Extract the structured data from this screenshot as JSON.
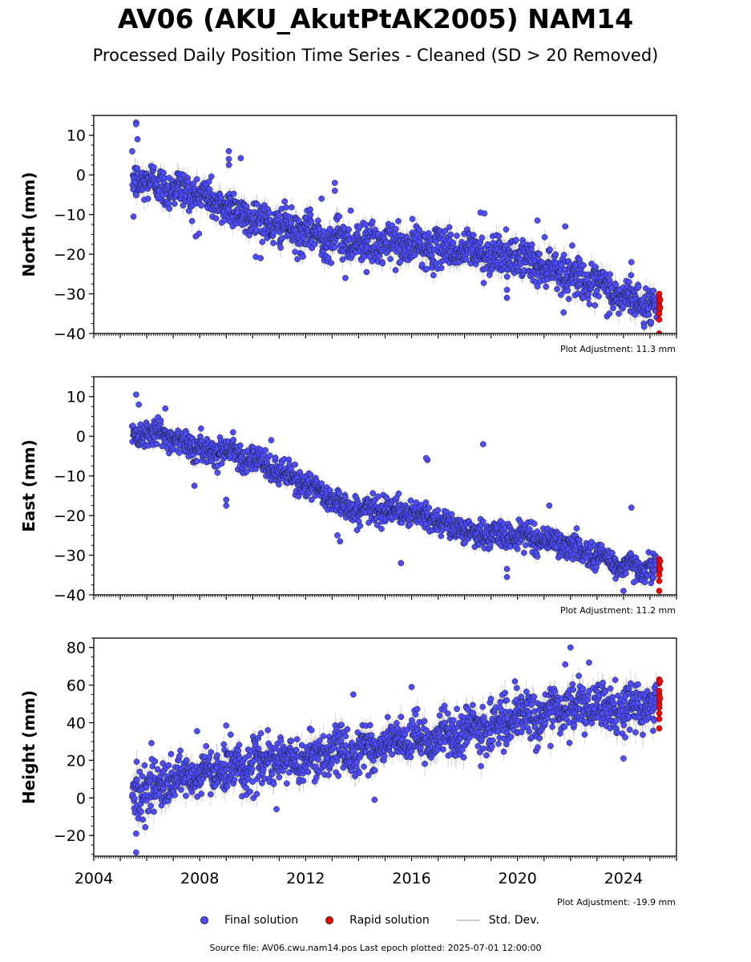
{
  "header": {
    "title": "AV06 (AKU_AkutPtAK2005) NAM14",
    "subtitle": "Processed Daily Position Time Series - Cleaned (SD > 20 Removed)"
  },
  "legend": {
    "final": "Final solution",
    "rapid": "Rapid solution",
    "std": "Std. Dev."
  },
  "footer": {
    "source": "Source file: AV06.cwu.nam14.pos  Last epoch plotted: 2025-07-01 12:00:00"
  },
  "colors": {
    "final": "#4d4dff",
    "rapid": "#ff0000",
    "std": "#bbbbbb",
    "edge": "#1a1a1a"
  },
  "chart_data": [
    {
      "type": "scatter",
      "ylabel": "North (mm)",
      "adjustment": "Plot Adjustment: 11.3 mm",
      "xlim": [
        2004.0,
        2026.0
      ],
      "ylim": [
        -40,
        15
      ],
      "yticks": [
        10,
        0,
        -10,
        -20,
        -30,
        -40
      ],
      "yticklabels": [
        "10",
        "0",
        "−10",
        "−20",
        "−30",
        "−40"
      ],
      "show_xticklabels": false,
      "trend": [
        [
          2005.5,
          -1
        ],
        [
          2008,
          -5
        ],
        [
          2010,
          -11
        ],
        [
          2012,
          -15
        ],
        [
          2014,
          -17
        ],
        [
          2016,
          -18
        ],
        [
          2018,
          -19
        ],
        [
          2020,
          -21
        ],
        [
          2022,
          -25
        ],
        [
          2024,
          -31
        ],
        [
          2025.2,
          -33
        ]
      ],
      "scatter_sd": 2.4,
      "outliers": [
        [
          2005.6,
          13.2
        ],
        [
          2005.6,
          12.8
        ],
        [
          2005.65,
          9
        ],
        [
          2009.1,
          6
        ],
        [
          2009.1,
          4
        ],
        [
          2009.1,
          2.5
        ],
        [
          2009.55,
          4.2
        ],
        [
          2013.1,
          -2
        ],
        [
          2013.1,
          -4
        ],
        [
          2012.6,
          -6
        ],
        [
          2013.7,
          -9
        ],
        [
          2018.6,
          -9.5
        ],
        [
          2018.75,
          -9.7
        ],
        [
          2019.6,
          -31
        ],
        [
          2019.6,
          -29
        ],
        [
          2020.75,
          -11.5
        ],
        [
          2021.8,
          -13
        ],
        [
          2024.3,
          -22
        ],
        [
          2005.5,
          -10.5
        ],
        [
          2007.85,
          -15.5
        ],
        [
          2010.3,
          -21
        ],
        [
          2013.5,
          -26
        ],
        [
          2014.3,
          -24.5
        ]
      ],
      "rapid": [
        [
          2025.35,
          -30
        ],
        [
          2025.35,
          -31
        ],
        [
          2025.35,
          -32
        ],
        [
          2025.35,
          -33
        ],
        [
          2025.35,
          -34
        ],
        [
          2025.35,
          -35
        ],
        [
          2025.35,
          -36.5
        ],
        [
          2025.35,
          -40
        ],
        [
          2025.38,
          -31.5
        ],
        [
          2025.38,
          -33.5
        ]
      ]
    },
    {
      "type": "scatter",
      "ylabel": "East (mm)",
      "adjustment": "Plot Adjustment: 11.2 mm",
      "xlim": [
        2004.0,
        2026.0
      ],
      "ylim": [
        -40,
        15
      ],
      "yticks": [
        10,
        0,
        -10,
        -20,
        -30,
        -40
      ],
      "yticklabels": [
        "10",
        "0",
        "−10",
        "−20",
        "−30",
        "−40"
      ],
      "show_xticklabels": false,
      "trend": [
        [
          2005.5,
          1
        ],
        [
          2006.5,
          1
        ],
        [
          2007.5,
          -2
        ],
        [
          2008.3,
          -4
        ],
        [
          2009,
          -3
        ],
        [
          2010,
          -6
        ],
        [
          2011,
          -9
        ],
        [
          2012,
          -12
        ],
        [
          2013,
          -16
        ],
        [
          2014,
          -19
        ],
        [
          2015,
          -18
        ],
        [
          2016,
          -20
        ],
        [
          2017,
          -21
        ],
        [
          2018,
          -24
        ],
        [
          2019,
          -25
        ],
        [
          2020,
          -25
        ],
        [
          2021,
          -26
        ],
        [
          2022,
          -28
        ],
        [
          2023,
          -30
        ],
        [
          2024,
          -33
        ],
        [
          2025.2,
          -33
        ]
      ],
      "scatter_sd": 1.6,
      "outliers": [
        [
          2005.6,
          10.5
        ],
        [
          2005.7,
          8
        ],
        [
          2006.7,
          7
        ],
        [
          2009.0,
          -16
        ],
        [
          2009.0,
          -17.5
        ],
        [
          2010.7,
          -1
        ],
        [
          2013.2,
          -25
        ],
        [
          2013.3,
          -26.5
        ],
        [
          2015.6,
          -32
        ],
        [
          2016.6,
          -6
        ],
        [
          2018.7,
          -2
        ],
        [
          2019.6,
          -35.5
        ],
        [
          2019.6,
          -33.5
        ],
        [
          2024.0,
          -39
        ],
        [
          2024.3,
          -18
        ],
        [
          2007.8,
          -12.5
        ],
        [
          2021.2,
          -17.5
        ],
        [
          2016.55,
          -5.5
        ]
      ],
      "rapid": [
        [
          2025.35,
          -31
        ],
        [
          2025.35,
          -32
        ],
        [
          2025.35,
          -33
        ],
        [
          2025.35,
          -34
        ],
        [
          2025.35,
          -35
        ],
        [
          2025.35,
          -36.5
        ],
        [
          2025.35,
          -39
        ],
        [
          2025.38,
          -31.5
        ],
        [
          2025.38,
          -33.5
        ]
      ]
    },
    {
      "type": "scatter",
      "ylabel": "Height (mm)",
      "adjustment": "Plot Adjustment: -19.9 mm",
      "xlim": [
        2004.0,
        2026.0
      ],
      "ylim": [
        -31,
        85
      ],
      "yticks": [
        80,
        60,
        40,
        20,
        0,
        -20
      ],
      "yticklabels": [
        "80",
        "60",
        "40",
        "20",
        "0",
        "−20"
      ],
      "show_xticklabels": true,
      "xticks": [
        2004,
        2008,
        2012,
        2016,
        2020,
        2024
      ],
      "xticklabels": [
        "2004",
        "2008",
        "2012",
        "2016",
        "2020",
        "2024"
      ],
      "trend": [
        [
          2005.5,
          3
        ],
        [
          2007,
          8
        ],
        [
          2008,
          12
        ],
        [
          2009,
          16
        ],
        [
          2010,
          18
        ],
        [
          2012,
          21
        ],
        [
          2014,
          26
        ],
        [
          2016,
          30
        ],
        [
          2018,
          35
        ],
        [
          2020,
          42
        ],
        [
          2022,
          48
        ],
        [
          2024,
          47
        ],
        [
          2025.2,
          50
        ]
      ],
      "scatter_sd": 6,
      "outliers": [
        [
          2005.6,
          -29
        ],
        [
          2005.6,
          -19
        ],
        [
          2009.0,
          38.5
        ],
        [
          2013.8,
          55
        ],
        [
          2022.0,
          80
        ],
        [
          2021.8,
          71
        ],
        [
          2022.7,
          72
        ],
        [
          2024.0,
          21
        ],
        [
          2019.9,
          62
        ],
        [
          2014.6,
          -1
        ],
        [
          2010.9,
          -6
        ],
        [
          2007.9,
          35.5
        ],
        [
          2016.0,
          59
        ],
        [
          2022.9,
          47.5
        ]
      ],
      "rapid": [
        [
          2025.35,
          37
        ],
        [
          2025.35,
          42
        ],
        [
          2025.35,
          45
        ],
        [
          2025.35,
          48
        ],
        [
          2025.35,
          50
        ],
        [
          2025.35,
          52
        ],
        [
          2025.35,
          55
        ],
        [
          2025.35,
          57
        ],
        [
          2025.35,
          61
        ],
        [
          2025.35,
          63
        ],
        [
          2025.38,
          62
        ],
        [
          2025.38,
          53
        ]
      ]
    }
  ]
}
